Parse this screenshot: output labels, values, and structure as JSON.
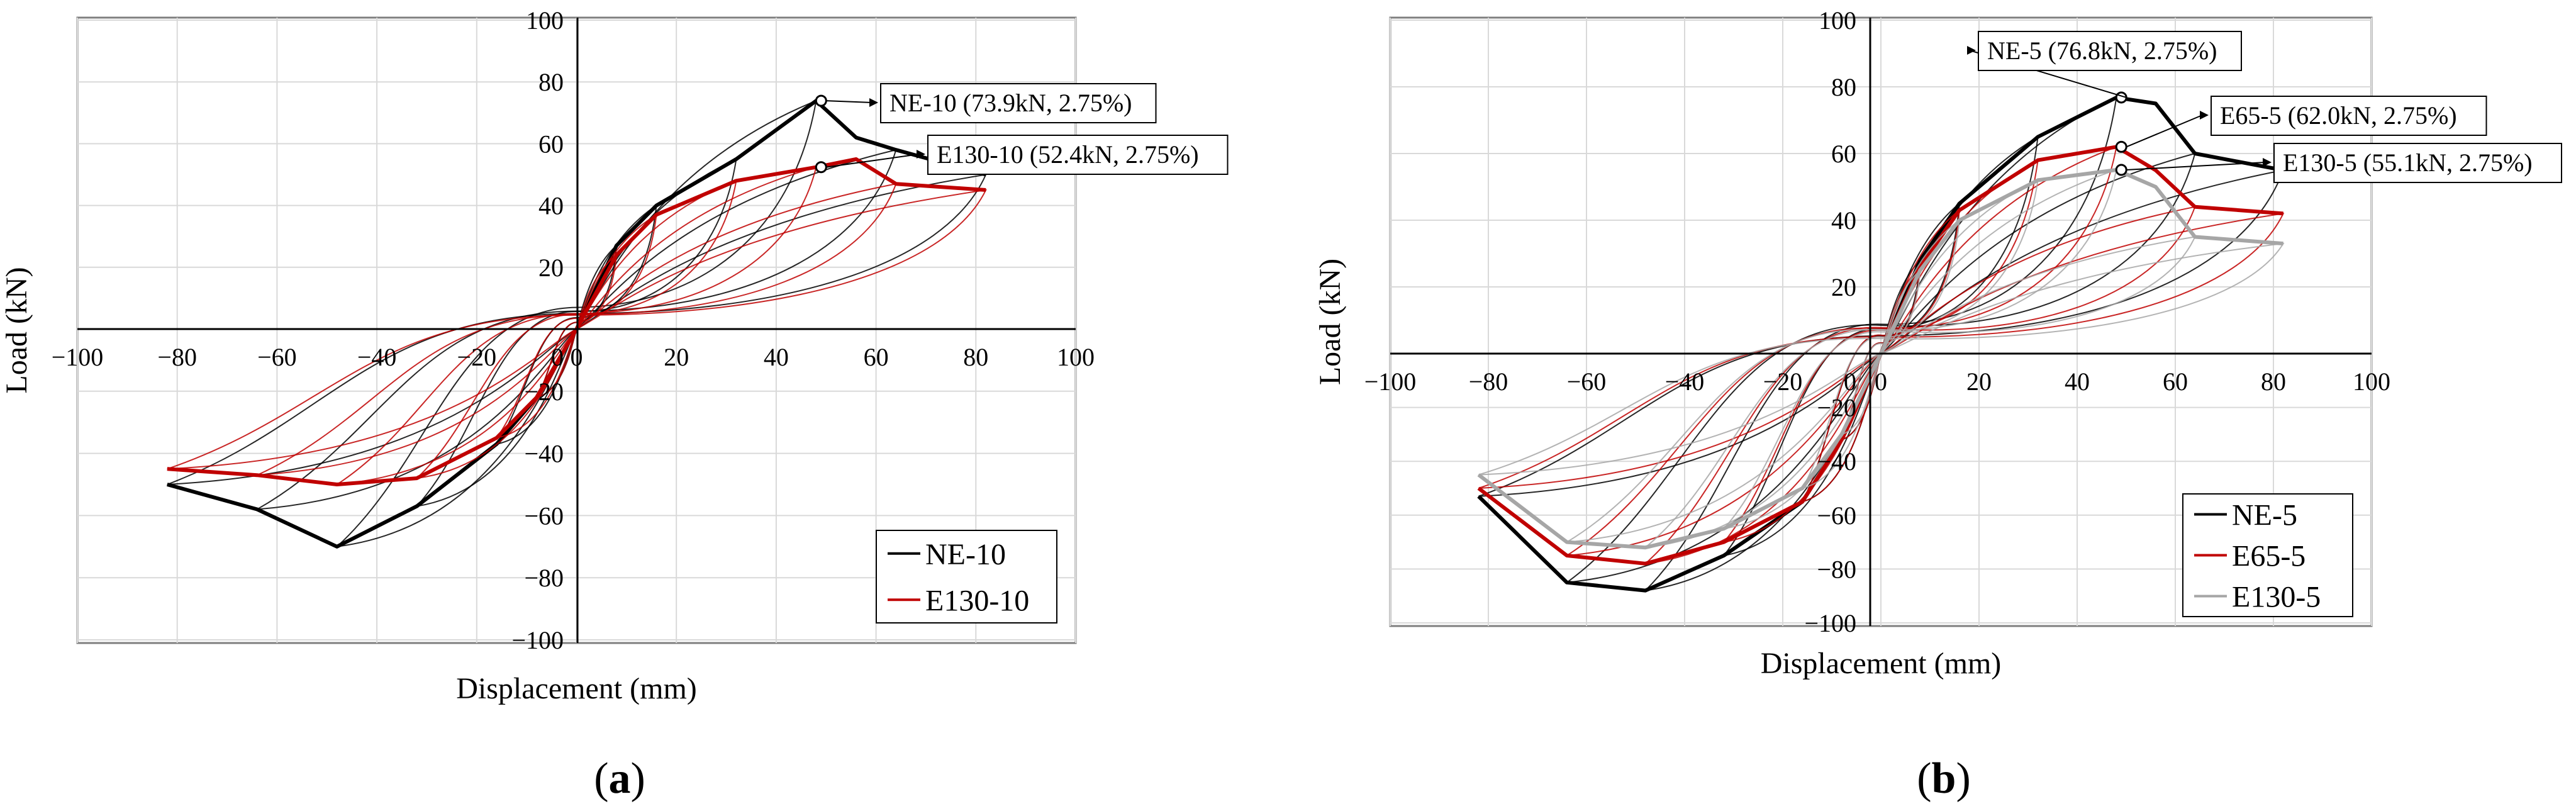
{
  "chart_data": [
    {
      "type": "line",
      "panel_label": "a",
      "xlabel": "Displacement (mm)",
      "ylabel": "Load (kN)",
      "xlim": [
        -100,
        100
      ],
      "ylim": [
        -100,
        100
      ],
      "xticks": [
        -100,
        -80,
        -60,
        -40,
        -20,
        0,
        20,
        40,
        60,
        80,
        100
      ],
      "yticks": [
        -100,
        -80,
        -60,
        -40,
        -20,
        0,
        20,
        40,
        60,
        80,
        100
      ],
      "grid": true,
      "legend_position": "bottom-right",
      "series": [
        {
          "name": "NE-10",
          "color": "#000000",
          "envelope": {
            "x": [
              -82,
              -64,
              -48,
              -32,
              -16,
              -8,
              0,
              8,
              16,
              32,
              48,
              56,
              64,
              82
            ],
            "y": [
              -50,
              -58,
              -70,
              -57,
              -37,
              -22,
              0,
              27,
              40,
              55,
              73.9,
              62,
              58,
              50
            ]
          }
        },
        {
          "name": "E130-10",
          "color": "#c00000",
          "envelope": {
            "x": [
              -82,
              -64,
              -48,
              -32,
              -16,
              -8,
              0,
              8,
              16,
              32,
              48,
              56,
              64,
              82
            ],
            "y": [
              -45,
              -47,
              -50,
              -48,
              -35,
              -22,
              0,
              24,
              37,
              48,
              52.4,
              55,
              47,
              45
            ]
          }
        }
      ],
      "annotations": [
        {
          "text": "NE-10 (73.9kN, 2.75%)",
          "x": 49,
          "y": 73.9
        },
        {
          "text": "E130-10 (52.4kN, 2.75%)",
          "x": 49,
          "y": 52.4
        }
      ]
    },
    {
      "type": "line",
      "panel_label": "b",
      "xlabel": "Displacement (mm)",
      "ylabel": "Load (kN)",
      "xlim": [
        -100,
        100
      ],
      "ylim": [
        -100,
        100
      ],
      "xticks": [
        -100,
        -80,
        -60,
        -40,
        -20,
        0,
        20,
        40,
        60,
        80,
        100
      ],
      "yticks": [
        -100,
        -80,
        -60,
        -40,
        -20,
        0,
        20,
        40,
        60,
        80,
        100
      ],
      "grid": true,
      "legend_position": "bottom-right",
      "series": [
        {
          "name": "NE-5",
          "color": "#000000",
          "envelope": {
            "x": [
              -82,
              -64,
              -48,
              -32,
              -16,
              -8,
              0,
              8,
              16,
              32,
              48,
              56,
              64,
              82
            ],
            "y": [
              -53,
              -85,
              -88,
              -75,
              -55,
              -32,
              0,
              28,
              45,
              65,
              76.8,
              75,
              60,
              55
            ]
          }
        },
        {
          "name": "E65-5",
          "color": "#c00000",
          "envelope": {
            "x": [
              -82,
              -64,
              -48,
              -32,
              -16,
              -8,
              0,
              8,
              16,
              32,
              48,
              56,
              64,
              82
            ],
            "y": [
              -50,
              -75,
              -78,
              -70,
              -55,
              -32,
              0,
              26,
              43,
              58,
              62.0,
              55,
              44,
              42
            ]
          }
        },
        {
          "name": "E130-5",
          "color": "#a6a6a6",
          "envelope": {
            "x": [
              -82,
              -64,
              -48,
              -32,
              -16,
              -8,
              0,
              8,
              16,
              32,
              48,
              56,
              64,
              82
            ],
            "y": [
              -45,
              -70,
              -72,
              -65,
              -50,
              -30,
              0,
              25,
              40,
              52,
              55.1,
              50,
              35,
              33
            ]
          }
        }
      ],
      "annotations": [
        {
          "text": "NE-5 (76.8kN, 2.75%)",
          "x": 49,
          "y": 76.8
        },
        {
          "text": "E65-5 (62.0kN, 2.75%)",
          "x": 49,
          "y": 62.0
        },
        {
          "text": "E130-5 (55.1kN, 2.75%)",
          "x": 49,
          "y": 55.1
        }
      ]
    }
  ]
}
